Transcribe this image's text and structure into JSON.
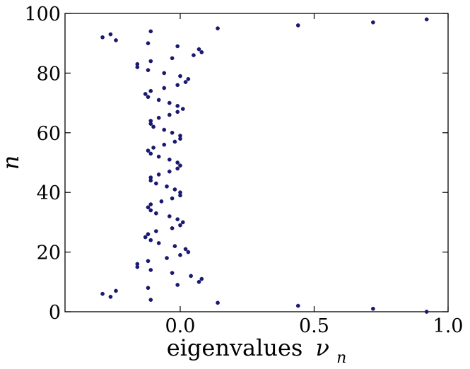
{
  "chart_data": {
    "type": "scatter",
    "title": "",
    "xlabel": "eigenvalues",
    "xlabel_symbol": "ν",
    "xlabel_subscript": "n",
    "ylabel": "n",
    "xlim": [
      -0.43,
      1.0
    ],
    "ylim": [
      0,
      100
    ],
    "xticks": [
      0.0,
      0.5,
      1.0
    ],
    "xtick_labels": [
      "0.0",
      "0.5",
      "1.0"
    ],
    "yticks": [
      0,
      20,
      40,
      60,
      80,
      100
    ],
    "ytick_labels": [
      "0",
      "20",
      "40",
      "60",
      "80",
      "100"
    ],
    "grid": false,
    "marker_color": "#191970",
    "series": [
      {
        "name": "",
        "points": [
          [
            0.92,
            0
          ],
          [
            0.72,
            1
          ],
          [
            0.44,
            2
          ],
          [
            0.14,
            3
          ],
          [
            -0.11,
            4
          ],
          [
            -0.26,
            5
          ],
          [
            -0.29,
            6
          ],
          [
            -0.24,
            7
          ],
          [
            -0.12,
            8
          ],
          [
            -0.01,
            9
          ],
          [
            0.07,
            10
          ],
          [
            0.08,
            11
          ],
          [
            0.04,
            12
          ],
          [
            -0.03,
            13
          ],
          [
            -0.11,
            14
          ],
          [
            -0.16,
            15
          ],
          [
            -0.16,
            16
          ],
          [
            -0.12,
            17
          ],
          [
            -0.05,
            18
          ],
          [
            0.0,
            19
          ],
          [
            0.03,
            20
          ],
          [
            0.02,
            21
          ],
          [
            -0.02,
            22
          ],
          [
            -0.08,
            23
          ],
          [
            -0.11,
            24
          ],
          [
            -0.13,
            25
          ],
          [
            -0.12,
            26
          ],
          [
            -0.09,
            27
          ],
          [
            -0.03,
            28
          ],
          [
            0.0,
            29
          ],
          [
            0.01,
            30
          ],
          [
            -0.01,
            31
          ],
          [
            -0.04,
            32
          ],
          [
            -0.09,
            33
          ],
          [
            -0.11,
            34
          ],
          [
            -0.12,
            35
          ],
          [
            -0.11,
            36
          ],
          [
            -0.07,
            37
          ],
          [
            -0.03,
            38
          ],
          [
            0.0,
            39
          ],
          [
            0.0,
            40
          ],
          [
            -0.02,
            41
          ],
          [
            -0.05,
            42
          ],
          [
            -0.09,
            43
          ],
          [
            -0.11,
            44
          ],
          [
            -0.11,
            45
          ],
          [
            -0.08,
            46
          ],
          [
            -0.04,
            47
          ],
          [
            -0.01,
            48
          ],
          [
            0.0,
            49
          ],
          [
            -0.01,
            50
          ],
          [
            -0.04,
            51
          ],
          [
            -0.08,
            52
          ],
          [
            -0.11,
            53
          ],
          [
            -0.12,
            54
          ],
          [
            -0.1,
            55
          ],
          [
            -0.06,
            56
          ],
          [
            -0.02,
            57
          ],
          [
            0.0,
            58
          ],
          [
            0.0,
            59
          ],
          [
            -0.03,
            60
          ],
          [
            -0.06,
            61
          ],
          [
            -0.1,
            62
          ],
          [
            -0.11,
            63
          ],
          [
            -0.11,
            64
          ],
          [
            -0.08,
            65
          ],
          [
            -0.04,
            66
          ],
          [
            -0.01,
            67
          ],
          [
            0.01,
            68
          ],
          [
            -0.01,
            69
          ],
          [
            -0.04,
            70
          ],
          [
            -0.08,
            71
          ],
          [
            -0.12,
            72
          ],
          [
            -0.13,
            73
          ],
          [
            -0.11,
            74
          ],
          [
            -0.06,
            75
          ],
          [
            -0.01,
            76
          ],
          [
            0.02,
            77
          ],
          [
            0.03,
            78
          ],
          [
            0.0,
            79
          ],
          [
            -0.06,
            80
          ],
          [
            -0.12,
            81
          ],
          [
            -0.16,
            82
          ],
          [
            -0.16,
            83
          ],
          [
            -0.11,
            84
          ],
          [
            -0.03,
            85
          ],
          [
            0.05,
            86
          ],
          [
            0.08,
            87
          ],
          [
            0.07,
            88
          ],
          [
            -0.01,
            89
          ],
          [
            -0.12,
            90
          ],
          [
            -0.24,
            91
          ],
          [
            -0.29,
            92
          ],
          [
            -0.26,
            93
          ],
          [
            -0.11,
            94
          ],
          [
            0.14,
            95
          ],
          [
            0.44,
            96
          ],
          [
            0.72,
            97
          ],
          [
            0.92,
            98
          ]
        ]
      }
    ]
  }
}
